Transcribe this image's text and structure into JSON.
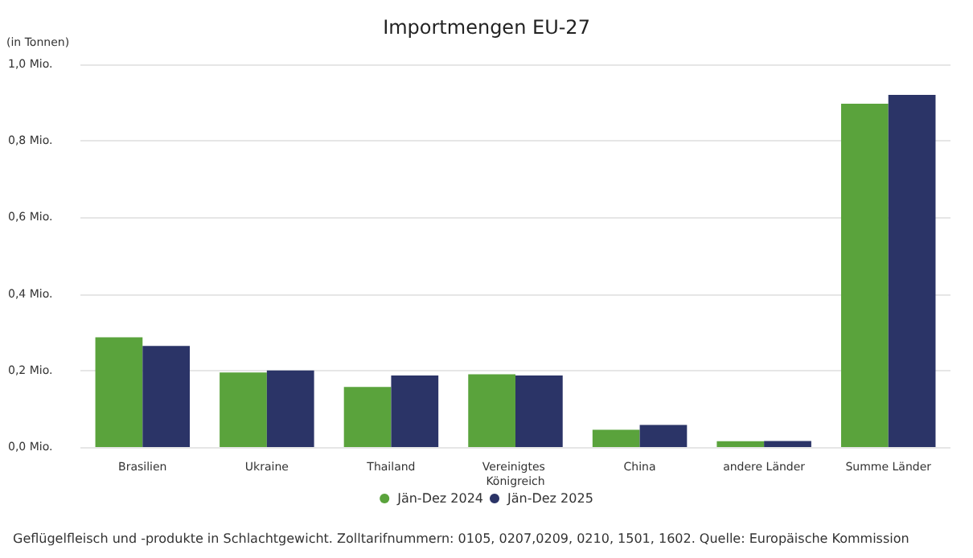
{
  "chart_data": {
    "type": "bar",
    "title": "Importmengen EU-27",
    "ylabel": "(in Tonnen)",
    "categories": [
      "Brasilien",
      "Ukraine",
      "Thailand",
      "Vereinigtes Königreich",
      "China",
      "andere Länder",
      "Summe Länder"
    ],
    "series": [
      {
        "name": "Jän-Dez 2024",
        "color": "#5aa33c",
        "values": [
          0.287,
          0.195,
          0.157,
          0.19,
          0.045,
          0.015,
          0.897
        ]
      },
      {
        "name": "Jän-Dez 2025",
        "color": "#2b3467",
        "values": [
          0.264,
          0.2,
          0.187,
          0.187,
          0.058,
          0.016,
          0.92
        ]
      }
    ],
    "ylim": [
      0,
      1
    ],
    "yticks": [
      {
        "value": 0,
        "label": "0,0 Mio."
      },
      {
        "value": 0.2,
        "label": "0,2 Mio."
      },
      {
        "value": 0.4,
        "label": "0,4 Mio."
      },
      {
        "value": 0.6,
        "label": "0,6 Mio."
      },
      {
        "value": 0.8,
        "label": "0,8 Mio."
      },
      {
        "value": 1,
        "label": "1,0 Mio."
      }
    ],
    "grid": "y",
    "legend": "bottom",
    "annotations": [
      "Geflügelfleisch und -produkte in Schlachtgewicht. Zolltarifnummern: 0105, 0207,0209, 0210, 1501, 1602. Quelle: Europäische Kommission"
    ]
  }
}
